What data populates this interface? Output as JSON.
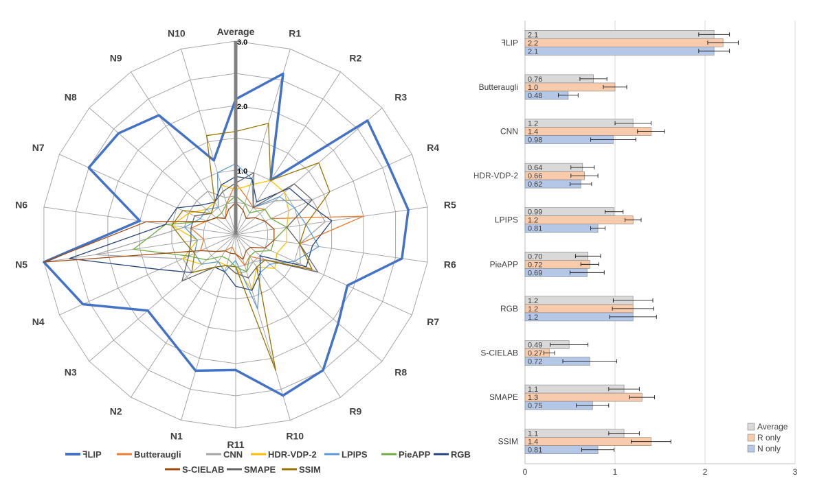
{
  "chart_data": [
    {
      "type": "radar",
      "axes": [
        "Average",
        "R1",
        "R2",
        "R3",
        "R4",
        "R5",
        "R6",
        "R7",
        "R8",
        "R9",
        "R10",
        "R11",
        "N1",
        "N2",
        "N3",
        "N4",
        "N5",
        "N6",
        "N7",
        "N8",
        "N9",
        "N10"
      ],
      "rings": [
        "1.0",
        "2.0",
        "3.0"
      ],
      "rmax": 3,
      "grid": true,
      "legend_position": "bottom",
      "series": [
        {
          "name": "ꟻLIP",
          "color": "#4472c4",
          "width": 3.5,
          "values": [
            2.1,
            2.6,
            1.0,
            2.7,
            2.6,
            2.7,
            2.6,
            1.9,
            2.1,
            2.5,
            2.6,
            2.1,
            2.2,
            1.9,
            1.8,
            2.6,
            3.0,
            1.5,
            2.5,
            2.4,
            2.2,
            1.2
          ]
        },
        {
          "name": "Butteraugli",
          "color": "#ed7d31",
          "width": 1.3,
          "values": [
            0.8,
            0.6,
            0.5,
            0.6,
            0.6,
            2.0,
            1.0,
            1.3,
            0.6,
            0.4,
            0.5,
            0.3,
            0.2,
            0.3,
            0.4,
            0.6,
            0.5,
            0.7,
            0.5,
            0.4,
            0.3,
            0.5
          ]
        },
        {
          "name": "CNN",
          "color": "#a5a5a5",
          "width": 1.3,
          "values": [
            0.6,
            0.5,
            0.5,
            0.8,
            1.3,
            1.4,
            1.0,
            1.1,
            0.6,
            0.5,
            0.6,
            0.6,
            0.5,
            0.6,
            0.9,
            0.9,
            2.2,
            0.8,
            0.8,
            0.8,
            0.8,
            0.6
          ]
        },
        {
          "name": "HDR-VDP-2",
          "color": "#ffc000",
          "width": 1.3,
          "values": [
            0.7,
            0.8,
            1.0,
            1.0,
            0.9,
            0.8,
            0.8,
            0.7,
            0.8,
            0.6,
            0.9,
            0.5,
            0.5,
            0.5,
            0.7,
            0.9,
            0.6,
            1.0,
            0.8,
            0.6,
            0.6,
            0.8
          ]
        },
        {
          "name": "LPIPS",
          "color": "#5b9bd5",
          "width": 1.3,
          "values": [
            1.1,
            0.9,
            0.5,
            0.9,
            1.0,
            1.1,
            1.3,
            1.0,
            0.7,
            0.7,
            1.2,
            0.4,
            0.6,
            0.5,
            0.7,
            0.7,
            0.6,
            0.8,
            0.6,
            0.6,
            0.5,
            1.0
          ]
        },
        {
          "name": "PieAPP",
          "color": "#70ad47",
          "width": 1.3,
          "values": [
            0.6,
            0.5,
            0.4,
            0.6,
            0.6,
            0.8,
            0.6,
            0.6,
            0.4,
            0.4,
            0.6,
            0.5,
            0.4,
            0.4,
            0.6,
            0.8,
            1.6,
            1.1,
            0.5,
            0.4,
            0.4,
            0.5
          ]
        },
        {
          "name": "RGB",
          "color": "#264478",
          "width": 1.3,
          "values": [
            0.9,
            0.9,
            0.6,
            1.1,
            1.2,
            1.5,
            1.2,
            1.2,
            0.5,
            0.7,
            0.9,
            0.8,
            0.6,
            0.6,
            0.9,
            1.3,
            2.6,
            1.1,
            1.0,
            0.7,
            0.6,
            0.8
          ]
        },
        {
          "name": "S-CIELAB",
          "color": "#9e480e",
          "width": 1.3,
          "values": [
            0.5,
            0.4,
            0.3,
            0.4,
            0.5,
            0.6,
            0.6,
            0.5,
            0.3,
            0.3,
            0.4,
            0.3,
            0.3,
            0.3,
            0.4,
            0.6,
            3.0,
            1.4,
            0.5,
            0.4,
            0.3,
            0.4
          ]
        },
        {
          "name": "SMAPE",
          "color": "#636363",
          "width": 1.3,
          "values": [
            0.8,
            1.0,
            0.5,
            1.2,
            1.3,
            0.8,
            1.0,
            1.4,
            0.6,
            0.6,
            0.7,
            0.6,
            0.5,
            0.6,
            1.1,
            0.8,
            0.7,
            0.7,
            0.7,
            0.5,
            0.6,
            0.7
          ]
        },
        {
          "name": "SSIM",
          "color": "#997300",
          "width": 1.3,
          "values": [
            1.6,
            1.8,
            1.0,
            1.7,
            1.6,
            1.1,
            1.0,
            1.3,
            0.6,
            0.6,
            2.2,
            0.5,
            0.5,
            0.6,
            0.9,
            0.7,
            0.8,
            1.0,
            0.9,
            0.5,
            0.6,
            1.6
          ]
        }
      ]
    },
    {
      "type": "bar",
      "orientation": "horizontal",
      "categories": [
        "ꟻLIP",
        "Butteraugli",
        "CNN",
        "HDR-VDP-2",
        "LPIPS",
        "PieAPP",
        "RGB",
        "S-CIELAB",
        "SMAPE",
        "SSIM"
      ],
      "xlim": [
        0,
        3
      ],
      "xticks": [
        "0",
        "1",
        "2",
        "3"
      ],
      "grid": true,
      "legend_position": "bottom-right",
      "series": [
        {
          "name": "Average",
          "color": "#d9d9d9",
          "values": [
            2.1,
            0.76,
            1.2,
            0.64,
            0.99,
            0.7,
            1.2,
            0.49,
            1.1,
            1.1
          ],
          "labels": [
            "2.1",
            "0.76",
            "1.2",
            "0.64",
            "0.99",
            "0.70",
            "1.2",
            "0.49",
            "1.1",
            "1.1"
          ],
          "errors": [
            0.17,
            0.15,
            0.2,
            0.13,
            0.1,
            0.14,
            0.22,
            0.21,
            0.17,
            0.17
          ]
        },
        {
          "name": "R only",
          "color": "#f8cbad",
          "values": [
            2.2,
            1.0,
            1.4,
            0.66,
            1.2,
            0.72,
            1.2,
            0.27,
            1.3,
            1.4
          ],
          "labels": [
            "2.2",
            "1.0",
            "1.4",
            "0.66",
            "1.2",
            "0.72",
            "1.2",
            "0.27",
            "1.3",
            "1.4"
          ],
          "errors": [
            0.17,
            0.13,
            0.15,
            0.15,
            0.09,
            0.1,
            0.23,
            0.06,
            0.14,
            0.22
          ]
        },
        {
          "name": "N only",
          "color": "#b4c7e7",
          "values": [
            2.1,
            0.48,
            0.98,
            0.62,
            0.81,
            0.69,
            1.2,
            0.72,
            0.75,
            0.81
          ],
          "labels": [
            "2.1",
            "0.48",
            "0.98",
            "0.62",
            "0.81",
            "0.69",
            "1.2",
            "0.72",
            "0.75",
            "0.81"
          ],
          "errors": [
            0.17,
            0.11,
            0.25,
            0.12,
            0.08,
            0.19,
            0.26,
            0.3,
            0.18,
            0.18
          ]
        }
      ]
    }
  ]
}
